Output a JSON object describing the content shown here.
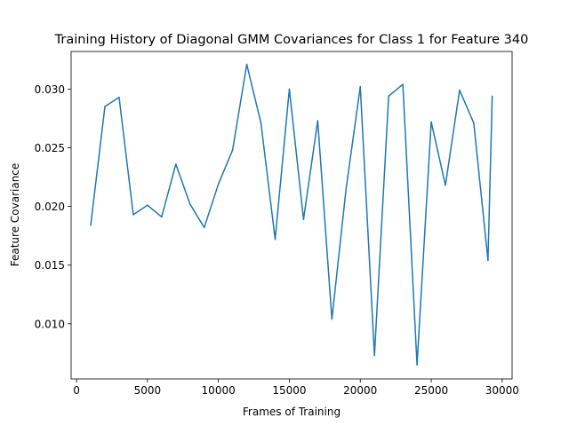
{
  "chart_data": {
    "type": "line",
    "title": "Training History of Diagonal GMM Covariances for Class 1 for Feature 340",
    "xlabel": "Frames of Training",
    "ylabel": "Feature Covariance",
    "xlim": [
      -380,
      30700
    ],
    "ylim": [
      0.0053,
      0.0332
    ],
    "xticks": [
      0,
      5000,
      10000,
      15000,
      20000,
      25000,
      30000
    ],
    "xtick_labels": [
      "0",
      "5000",
      "10000",
      "15000",
      "20000",
      "25000",
      "30000"
    ],
    "yticks": [
      0.01,
      0.015,
      0.02,
      0.025,
      0.03
    ],
    "ytick_labels": [
      "0.010",
      "0.015",
      "0.020",
      "0.025",
      "0.030"
    ],
    "grid": false,
    "line_color": "#1f77b4",
    "series": [
      {
        "x": [
          1000,
          2000,
          3000,
          4000,
          5000,
          6000,
          7000,
          8000,
          9000,
          10000,
          11000,
          12000,
          13000,
          14000,
          15000,
          16000,
          17000,
          18000,
          19000,
          20000,
          21000,
          22000,
          23000,
          24000,
          25000,
          26000,
          27000,
          28000,
          29000,
          29300
        ],
        "values": [
          0.0184,
          0.0285,
          0.0293,
          0.0193,
          0.0201,
          0.0191,
          0.0236,
          0.0202,
          0.0182,
          0.0219,
          0.0248,
          0.0321,
          0.0271,
          0.0172,
          0.03,
          0.0189,
          0.0273,
          0.0104,
          0.0215,
          0.0302,
          0.0073,
          0.0294,
          0.0304,
          0.0065,
          0.0272,
          0.0218,
          0.0299,
          0.0271,
          0.0154,
          0.0294
        ]
      }
    ]
  }
}
